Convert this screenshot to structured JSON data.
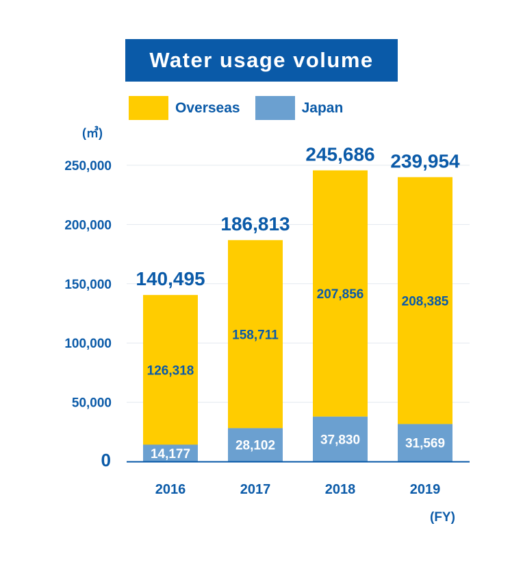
{
  "colors": {
    "brand": "#0a5aa8",
    "overseas": "#ffcc00",
    "japan": "#6ba0d0",
    "grid": "#e3e8ef"
  },
  "chart_data": {
    "type": "bar",
    "stacked": true,
    "title": "Water usage volume",
    "unit": "(㎥)",
    "xlabel": "(FY)",
    "categories": [
      "2016",
      "2017",
      "2018",
      "2019"
    ],
    "series": [
      {
        "name": "Japan",
        "values": [
          14177,
          28102,
          37830,
          31569
        ],
        "labels": [
          "14,177",
          "28,102",
          "37,830",
          "31,569"
        ]
      },
      {
        "name": "Overseas",
        "values": [
          126318,
          158711,
          207856,
          208385
        ],
        "labels": [
          "126,318",
          "158,711",
          "207,856",
          "208,385"
        ]
      }
    ],
    "totals": [
      140495,
      186813,
      245686,
      239954
    ],
    "total_labels": [
      "140,495",
      "186,813",
      "245,686",
      "239,954"
    ],
    "ylim": [
      0,
      250000
    ],
    "yticks": [
      0,
      50000,
      100000,
      150000,
      200000,
      250000
    ],
    "ytick_labels": [
      "0",
      "50,000",
      "100,000",
      "150,000",
      "200,000",
      "250,000"
    ],
    "grid": true,
    "legend_position": "top"
  }
}
